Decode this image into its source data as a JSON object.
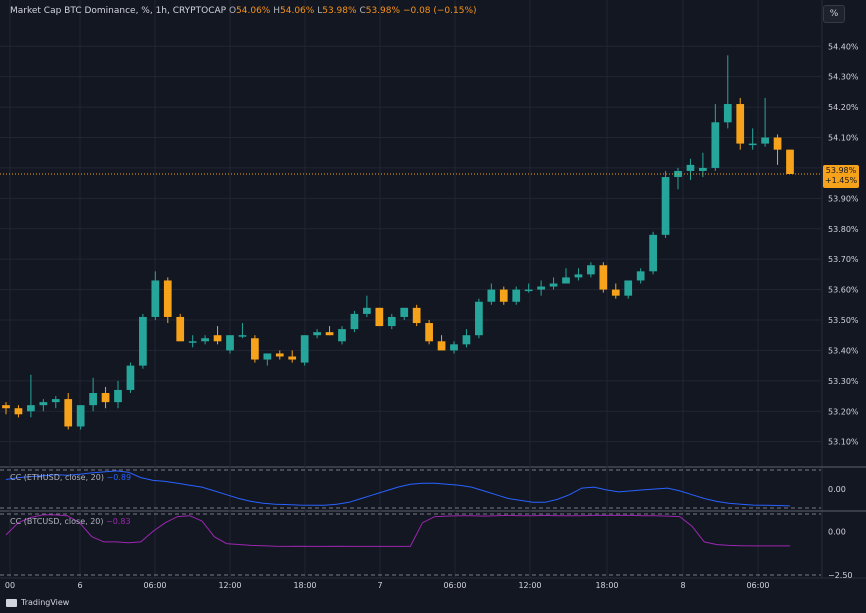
{
  "header": {
    "symbol": "Market Cap BTC Dominance, %, 1h, CRYPTOCAP",
    "o_label": "O",
    "o_value": "54.06%",
    "h_label": "H",
    "h_value": "54.06%",
    "l_label": "L",
    "l_value": "53.98%",
    "c_label": "C",
    "c_value": "53.98%",
    "change": "−0.08 (−0.15%)"
  },
  "percent_button": "%",
  "last_price": {
    "value": "53.98%",
    "change": "+1.45%"
  },
  "indicator1": {
    "title": "CC (ETHUSD, close, 20)",
    "value": "−0.89"
  },
  "indicator2": {
    "title": "CC (BTCUSD, close, 20)",
    "value": "−0.83"
  },
  "branding": "TradingView",
  "colors": {
    "up": "#26a69a",
    "down": "#f7a21b",
    "ind1": "#2962ff",
    "ind2": "#9c27b0",
    "bg": "#131722"
  },
  "chart_data": {
    "type": "candlestick",
    "ylim": [
      53.02,
      54.46
    ],
    "y_ticks": [
      "54.40%",
      "54.30%",
      "54.20%",
      "54.10%",
      "54.00%",
      "53.90%",
      "53.80%",
      "53.70%",
      "53.60%",
      "53.50%",
      "53.40%",
      "53.30%",
      "53.20%",
      "53.10%"
    ],
    "x_ticks": [
      "00",
      "6",
      "06:00",
      "12:00",
      "18:00",
      "7",
      "06:00",
      "12:00",
      "18:00",
      "8",
      "06:00"
    ],
    "candles": [
      [
        53.22,
        53.23,
        53.19,
        53.21
      ],
      [
        53.21,
        53.22,
        53.18,
        53.19
      ],
      [
        53.2,
        53.32,
        53.18,
        53.22
      ],
      [
        53.22,
        53.24,
        53.2,
        53.23
      ],
      [
        53.23,
        53.25,
        53.21,
        53.24
      ],
      [
        53.24,
        53.26,
        53.14,
        53.15
      ],
      [
        53.15,
        53.22,
        53.14,
        53.22
      ],
      [
        53.22,
        53.31,
        53.2,
        53.26
      ],
      [
        53.26,
        53.28,
        53.21,
        53.23
      ],
      [
        53.23,
        53.3,
        53.21,
        53.27
      ],
      [
        53.27,
        53.36,
        53.26,
        53.35
      ],
      [
        53.35,
        53.52,
        53.34,
        53.51
      ],
      [
        53.51,
        53.66,
        53.5,
        53.63
      ],
      [
        53.63,
        53.64,
        53.49,
        53.51
      ],
      [
        53.51,
        53.52,
        53.43,
        53.43
      ],
      [
        53.43,
        53.45,
        53.41,
        53.43
      ],
      [
        53.43,
        53.45,
        53.42,
        53.44
      ],
      [
        53.45,
        53.48,
        53.42,
        53.43
      ],
      [
        53.4,
        53.45,
        53.39,
        53.45
      ],
      [
        53.45,
        53.49,
        53.44,
        53.45
      ],
      [
        53.44,
        53.45,
        53.36,
        53.37
      ],
      [
        53.37,
        53.39,
        53.35,
        53.39
      ],
      [
        53.39,
        53.4,
        53.37,
        53.38
      ],
      [
        53.38,
        53.4,
        53.36,
        53.37
      ],
      [
        53.36,
        53.45,
        53.35,
        53.45
      ],
      [
        53.45,
        53.47,
        53.44,
        53.46
      ],
      [
        53.46,
        53.48,
        53.45,
        53.45
      ],
      [
        53.43,
        53.48,
        53.42,
        53.47
      ],
      [
        53.47,
        53.53,
        53.46,
        53.52
      ],
      [
        53.52,
        53.58,
        53.51,
        53.54
      ],
      [
        53.54,
        53.54,
        53.48,
        53.48
      ],
      [
        53.48,
        53.52,
        53.47,
        53.51
      ],
      [
        53.51,
        53.54,
        53.5,
        53.54
      ],
      [
        53.54,
        53.55,
        53.48,
        53.49
      ],
      [
        53.49,
        53.5,
        53.42,
        53.43
      ],
      [
        53.43,
        53.45,
        53.4,
        53.4
      ],
      [
        53.4,
        53.43,
        53.39,
        53.42
      ],
      [
        53.42,
        53.47,
        53.41,
        53.45
      ],
      [
        53.45,
        53.57,
        53.44,
        53.56
      ],
      [
        53.56,
        53.62,
        53.55,
        53.6
      ],
      [
        53.6,
        53.61,
        53.55,
        53.56
      ],
      [
        53.56,
        53.61,
        53.55,
        53.6
      ],
      [
        53.6,
        53.62,
        53.59,
        53.6
      ],
      [
        53.6,
        53.63,
        53.58,
        53.61
      ],
      [
        53.61,
        53.64,
        53.6,
        53.62
      ],
      [
        53.62,
        53.67,
        53.62,
        53.64
      ],
      [
        53.64,
        53.67,
        53.63,
        53.65
      ],
      [
        53.65,
        53.69,
        53.64,
        53.68
      ],
      [
        53.68,
        53.69,
        53.59,
        53.6
      ],
      [
        53.6,
        53.62,
        53.57,
        53.58
      ],
      [
        53.58,
        53.63,
        53.57,
        53.63
      ],
      [
        53.63,
        53.67,
        53.62,
        53.66
      ],
      [
        53.66,
        53.79,
        53.65,
        53.78
      ],
      [
        53.78,
        53.99,
        53.77,
        53.97
      ],
      [
        53.97,
        54.0,
        53.93,
        53.99
      ],
      [
        53.99,
        54.03,
        53.96,
        54.01
      ],
      [
        53.99,
        54.05,
        53.97,
        54.0
      ],
      [
        54.0,
        54.21,
        53.99,
        54.15
      ],
      [
        54.15,
        54.37,
        54.13,
        54.21
      ],
      [
        54.21,
        54.23,
        54.06,
        54.08
      ],
      [
        54.08,
        54.13,
        54.06,
        54.08
      ],
      [
        54.08,
        54.23,
        54.07,
        54.1
      ],
      [
        54.1,
        54.11,
        54.01,
        54.06
      ],
      [
        54.06,
        54.06,
        53.98,
        53.98
      ]
    ]
  }
}
